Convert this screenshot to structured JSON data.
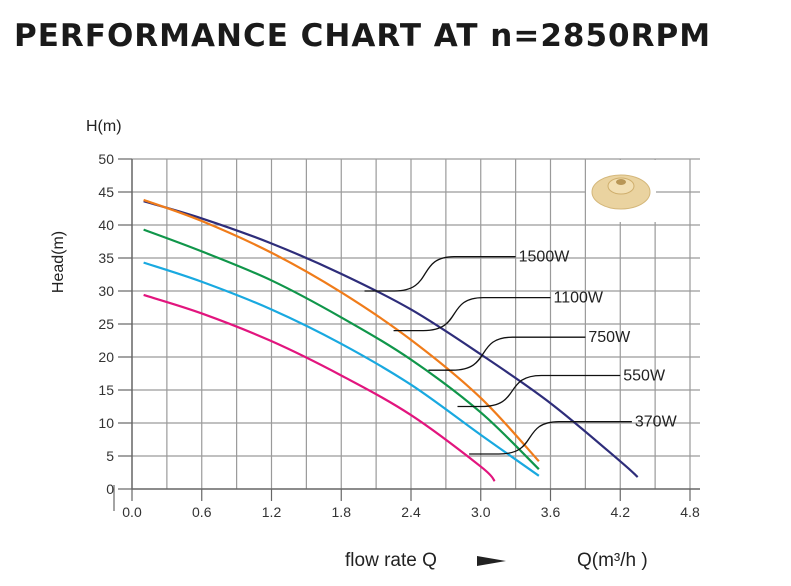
{
  "title": "PERFORMANCE CHART AT n=2850RPM",
  "chart_data": {
    "type": "line",
    "title": "PERFORMANCE CHART AT n=2850RPM",
    "y_unit_label": "H(m)",
    "ylabel": "Head(m)",
    "xlabel": "flow rate Q",
    "x_unit_label": "Q(m³/h )",
    "x_ticks": [
      "0.0",
      "0.6",
      "1.2",
      "1.8",
      "2.4",
      "3.0",
      "3.6",
      "4.2",
      "4.8"
    ],
    "y_ticks": [
      "0",
      "5",
      "10",
      "15",
      "20",
      "25",
      "30",
      "35",
      "40",
      "45",
      "50"
    ],
    "xlim": [
      0,
      4.8
    ],
    "ylim": [
      0,
      50
    ],
    "grid": true,
    "series": [
      {
        "name": "1500W",
        "color": "#2e2d7a",
        "points": [
          [
            0.1,
            43.6
          ],
          [
            0.6,
            41.0
          ],
          [
            1.2,
            37.2
          ],
          [
            1.8,
            32.6
          ],
          [
            2.4,
            27.2
          ],
          [
            3.0,
            20.4
          ],
          [
            3.6,
            13.0
          ],
          [
            4.2,
            4.2
          ],
          [
            4.35,
            1.8
          ]
        ]
      },
      {
        "name": "1100W",
        "color": "#f07c1a",
        "points": [
          [
            0.1,
            43.8
          ],
          [
            0.6,
            40.6
          ],
          [
            1.2,
            35.8
          ],
          [
            1.8,
            29.8
          ],
          [
            2.4,
            22.6
          ],
          [
            3.0,
            13.8
          ],
          [
            3.5,
            4.2
          ]
        ]
      },
      {
        "name": "750W",
        "color": "#10964a",
        "points": [
          [
            0.1,
            39.3
          ],
          [
            0.6,
            36.0
          ],
          [
            1.2,
            31.6
          ],
          [
            1.8,
            26.0
          ],
          [
            2.4,
            19.6
          ],
          [
            3.0,
            11.6
          ],
          [
            3.5,
            3.0
          ]
        ]
      },
      {
        "name": "550W",
        "color": "#19a9e0",
        "points": [
          [
            0.1,
            34.3
          ],
          [
            0.6,
            31.4
          ],
          [
            1.2,
            27.2
          ],
          [
            1.8,
            22.0
          ],
          [
            2.4,
            15.8
          ],
          [
            3.0,
            8.2
          ],
          [
            3.5,
            2.0
          ]
        ]
      },
      {
        "name": "370W",
        "color": "#e2157e",
        "points": [
          [
            0.1,
            29.4
          ],
          [
            0.6,
            26.6
          ],
          [
            1.2,
            22.4
          ],
          [
            1.8,
            17.2
          ],
          [
            2.4,
            11.2
          ],
          [
            3.0,
            3.4
          ],
          [
            3.12,
            1.2
          ]
        ]
      }
    ]
  }
}
